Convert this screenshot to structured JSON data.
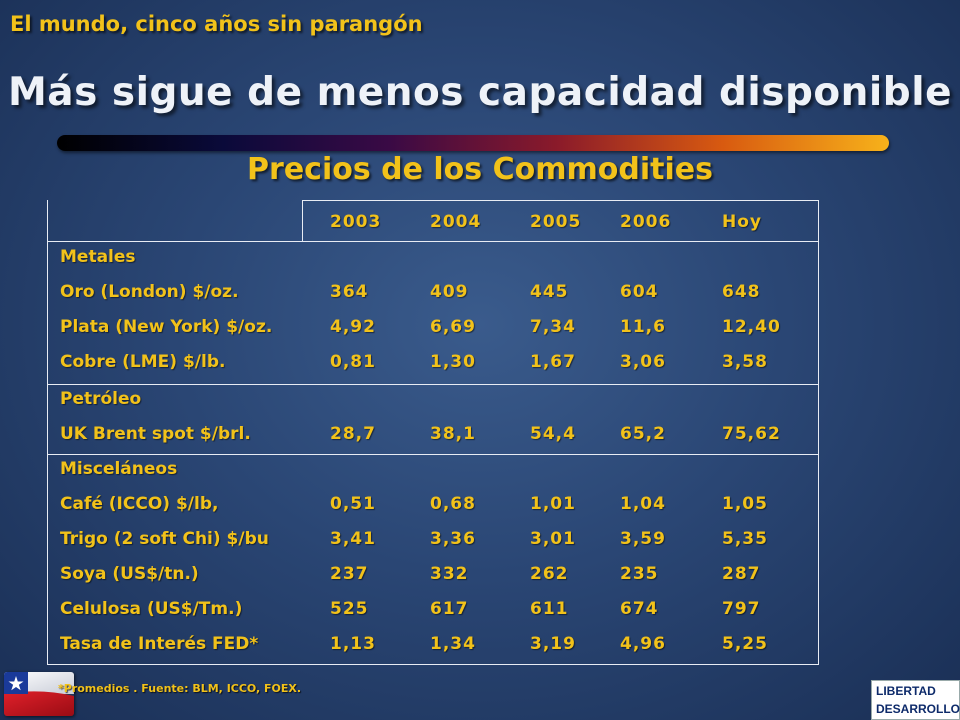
{
  "slide": {
    "topline": "El mundo, cinco años sin parangón",
    "title": "Más sigue de menos capacidad disponible",
    "subtitle": "Precios de los Commodities",
    "footnote": "*Promedios .  Fuente: BLM, ICCO, FOEX.",
    "logo_line1": "LIBERTAD",
    "logo_line2": "DESARROLLO"
  },
  "table": {
    "headers": [
      "2003",
      "2004",
      "2005",
      "2006",
      "Hoy"
    ],
    "rows": [
      {
        "label": "Metales",
        "values": [
          "",
          "",
          "",
          "",
          ""
        ]
      },
      {
        "label": "Oro   (London) $/oz.",
        "values": [
          "364",
          "409",
          "445",
          "604",
          "648"
        ]
      },
      {
        "label": "Plata (New York) $/oz.",
        "values": [
          "4,92",
          "6,69",
          "7,34",
          "11,6",
          "12,40"
        ]
      },
      {
        "label": "Cobre (LME) $/lb.",
        "values": [
          "0,81",
          "1,30",
          "1,67",
          "3,06",
          "3,58"
        ]
      },
      {
        "label": "Petróleo",
        "values": [
          "",
          "",
          "",
          "",
          ""
        ]
      },
      {
        "label": "UK Brent spot $/brl.",
        "values": [
          "28,7",
          "38,1",
          "54,4",
          "65,2",
          "75,62"
        ]
      },
      {
        "label": "Misceláneos",
        "values": [
          "",
          "",
          "",
          "",
          ""
        ]
      },
      {
        "label": "Café (ICCO) $/lb,",
        "values": [
          "0,51",
          "0,68",
          "1,01",
          "1,04",
          "1,05"
        ]
      },
      {
        "label": "Trigo (2 soft Chi) $/bu",
        "values": [
          "3,41",
          "3,36",
          "3,01",
          "3,59",
          "5,35"
        ]
      },
      {
        "label": "Soya (US$/tn.)",
        "values": [
          "237",
          "332",
          "262",
          "235",
          "287"
        ]
      },
      {
        "label": "Celulosa (US$/Tm.)",
        "values": [
          "525",
          "617",
          "611",
          "674",
          "797"
        ]
      },
      {
        "label": "Tasa de Interés  FED*",
        "values": [
          "1,13",
          "1,34",
          "3,19",
          "4,96",
          "5,25"
        ]
      }
    ]
  },
  "colors": {
    "accent": "#f2c21a",
    "title": "#eef2f8",
    "background": "#2a4674"
  }
}
